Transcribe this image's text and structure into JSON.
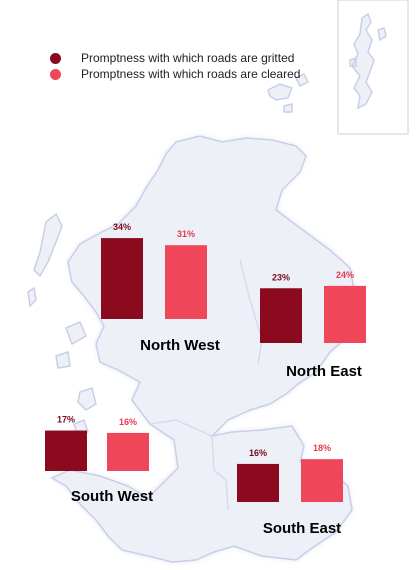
{
  "chart_data": {
    "type": "bar",
    "unit": "%",
    "series": [
      {
        "name": "Promptness with which roads are gritted",
        "color": "#8b0a1e"
      },
      {
        "name": "Promptness with which roads are cleared",
        "color": "#f0465a"
      }
    ],
    "regions": [
      {
        "name": "North West",
        "values": [
          34,
          31
        ],
        "labels": [
          "34%",
          "31%"
        ]
      },
      {
        "name": "North East",
        "values": [
          23,
          24
        ],
        "labels": [
          "23%",
          "24%"
        ]
      },
      {
        "name": "South West",
        "values": [
          17,
          16
        ],
        "labels": [
          "17%",
          "16%"
        ]
      },
      {
        "name": "South East",
        "values": [
          16,
          18
        ],
        "labels": [
          "16%",
          "18%"
        ]
      }
    ]
  },
  "colors": {
    "map_fill": "#eef0f8",
    "map_glow": "#dfe3f3",
    "map_border": "#c9cfe8",
    "inset_border": "#d2d2d8",
    "region_text": "#000000"
  }
}
